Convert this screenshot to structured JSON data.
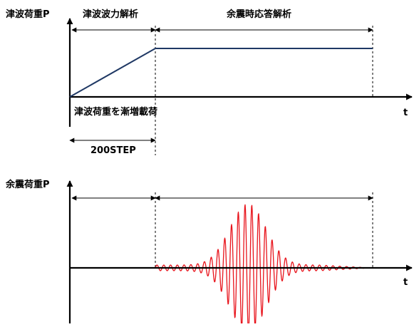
{
  "top_panel": {
    "y_label": "津波荷重P",
    "phase1_label": "津波波力解析",
    "phase2_label": "余震時応答解析",
    "time_label": "t",
    "ramp_caption": "津波荷重を漸増載荷",
    "step_label": "200STEP"
  },
  "bottom_panel": {
    "y_label": "余震荷重P",
    "time_label": "t"
  },
  "colors": {
    "load_line": "#1f3864",
    "aftershock_wave": "#e8141c",
    "axes": "#000000"
  }
}
